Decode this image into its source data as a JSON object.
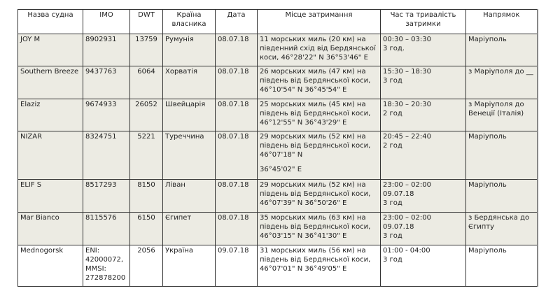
{
  "headers": [
    "Назва судна",
    "IMO",
    "DWT",
    "Країна власника",
    "Дата",
    "Місце затримання",
    "Час та тривалість затримки",
    "Напрямок"
  ],
  "rows": [
    {
      "name": "JOY M",
      "imo": "8902931",
      "dwt": "13759",
      "country": "Румунія",
      "date": "08.07.18",
      "place": "11 морських миль (20 км) на південний схід від Бердянської коси, 46°28'22\" N 36°53'46\" E",
      "place2": "",
      "time": "00:30 – 03:30",
      "duration": "3 год.",
      "direction": "Маріуполь",
      "shaded": true
    },
    {
      "name": "Southern Breeze",
      "imo": "9437763",
      "dwt": "6064",
      "country": "Хорватія",
      "date": "08.07.18",
      "place": "26 морських миль (47 км) на південь від Бердянської коси, 46°10'54\" N 36°45'54\" E",
      "place2": "",
      "time": "15:30 – 18:30",
      "duration": "3 год",
      "direction": "з Маріуполя до __",
      "shaded": true
    },
    {
      "name": "Elaziz",
      "imo": "9674933",
      "dwt": "26052",
      "country": "Швейцарія",
      "date": "08.07.18",
      "place": "25 морських миль (45 км) на південь від Бердянської коси, 46°12'55\" N 36°43'29\" E",
      "place2": "",
      "time": "18:30 – 20:30",
      "duration": "2 год",
      "direction": "з Маріуполя до Венеції (Італія)",
      "shaded": true
    },
    {
      "name": "NIZAR",
      "imo": "8324751",
      "dwt": "5221",
      "country": "Туреччина",
      "date": "08.07.18",
      "place": "29 морських миль (52 км) на південь від Бердянської коси, 46°07'18\" N",
      "place2": "36°45'02\" E",
      "time": "20:45 – 22:40",
      "duration": "2 год",
      "direction": "Маріуполь",
      "shaded": true
    },
    {
      "name": "ELIF S",
      "imo": "8517293",
      "dwt": "8150",
      "country": "Ліван",
      "date": "08.07.18",
      "place": "29 морських миль (52 км) на південь від Бердянської коси, 46°07'39\" N 36°50'26\" E",
      "place2": "",
      "time": "23:00 – 02:00 09.07.18",
      "duration": "3 год",
      "direction": "Маріуполь",
      "shaded": true
    },
    {
      "name": "Mar Bianco",
      "imo": "8115576",
      "dwt": "6150",
      "country": "Єгипет",
      "date": "08.07.18",
      "place": "35 морських миль (63 км) на південь від Бердянської коси, 46°03'15\" N 36°41'30\" E",
      "place2": "",
      "time": "23:00 – 02:00 09.07.18",
      "duration": "3 год",
      "direction": "з Бердянська до Єгипту",
      "shaded": true
    },
    {
      "name": "Mednogorsk",
      "imo": "ENI: 42000072, MMSI: 272878200",
      "dwt": "2056",
      "country": "Україна",
      "date": "09.07.18",
      "place": "31 морських миль (56 км) на південь від Бердянської коси, 46°07'01\" N 36°49'05\" E",
      "place2": "",
      "time": "01:00 - 04:00",
      "duration": "3 год",
      "direction": "Маріуполь",
      "shaded": false
    }
  ]
}
